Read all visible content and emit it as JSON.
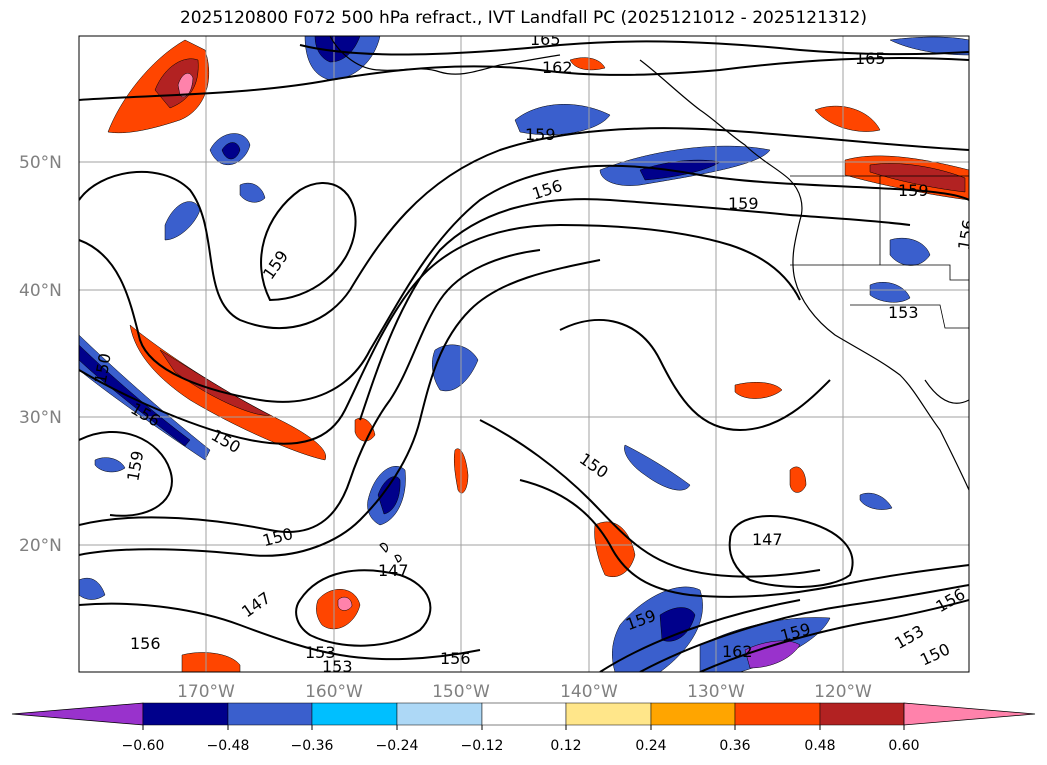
{
  "title": "2025120800 F072 500 hPa refract., IVT Landfall PC (2025121012 - 2025121312)",
  "lat_labels": [
    "50°N",
    "40°N",
    "30°N",
    "20°N"
  ],
  "lon_labels": [
    "170°W",
    "160°W",
    "150°W",
    "140°W",
    "130°W",
    "120°W"
  ],
  "contour_labels": [
    "165",
    "162",
    "165",
    "159",
    "156",
    "159",
    "159",
    "159",
    "153",
    "156",
    "150",
    "159",
    "150",
    "150",
    "147",
    "147",
    "147",
    "159",
    "153",
    "156",
    "153",
    "156",
    "150",
    "162",
    "159",
    "156",
    "153",
    "150",
    "156"
  ],
  "colorbar": {
    "ticks": [
      "−0.60",
      "−0.48",
      "−0.36",
      "−0.24",
      "−0.12",
      "0.12",
      "0.24",
      "0.36",
      "0.48",
      "0.60"
    ],
    "colors": [
      "#9932CC",
      "#00008B",
      "#3A5FCD",
      "#00BFFF",
      "#ADD8F6",
      "#FFFFFF",
      "#FFE68A",
      "#FFA500",
      "#FF4500",
      "#B22222",
      "#FF82AB"
    ]
  }
}
